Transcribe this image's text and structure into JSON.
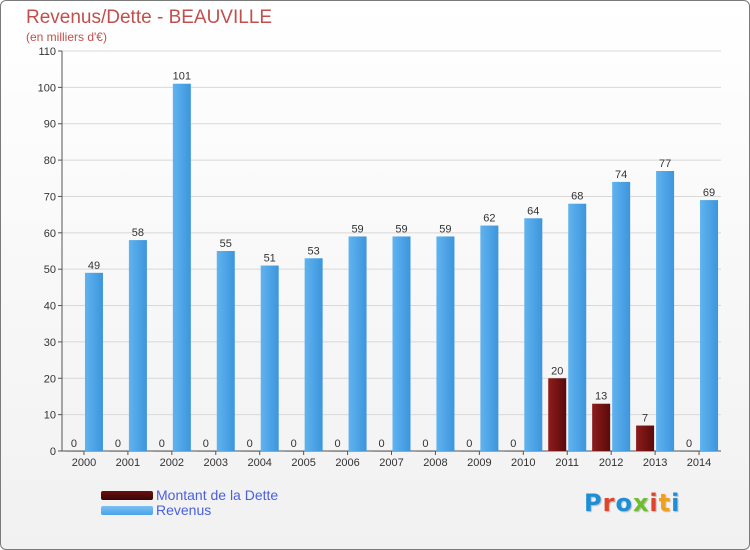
{
  "title": "Revenus/Dette - BEAUVILLE",
  "subtitle": "(en milliers d'€)",
  "logo": {
    "text": "Proxiti",
    "letter_colors": [
      "#1e8fd6",
      "#e0452b",
      "#1e8fd6",
      "#6fbf2d",
      "#e0452b",
      "#f0a020",
      "#1e8fd6"
    ]
  },
  "chart_data": {
    "type": "bar",
    "categories": [
      "2000",
      "2001",
      "2002",
      "2003",
      "2004",
      "2005",
      "2006",
      "2007",
      "2008",
      "2009",
      "2010",
      "2011",
      "2012",
      "2013",
      "2014"
    ],
    "series": [
      {
        "name": "Montant de la Dette",
        "color": "#6b1010",
        "values": [
          0,
          0,
          0,
          0,
          0,
          0,
          0,
          0,
          0,
          0,
          0,
          20,
          13,
          7,
          0
        ]
      },
      {
        "name": "Revenus",
        "color": "#4aa3e8",
        "values": [
          49,
          58,
          101,
          55,
          51,
          53,
          59,
          59,
          59,
          62,
          64,
          68,
          74,
          77,
          69
        ]
      }
    ],
    "ylim": [
      0,
      110
    ],
    "yticks": [
      0,
      10,
      20,
      30,
      40,
      50,
      60,
      70,
      80,
      90,
      100,
      110
    ],
    "grid": true,
    "legend": "bottom-left"
  }
}
